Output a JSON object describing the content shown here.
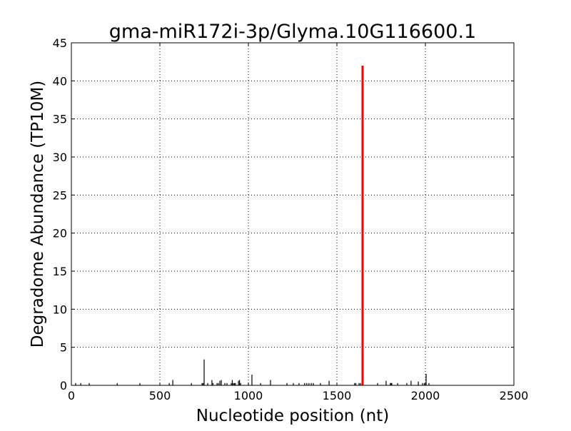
{
  "chart_data": {
    "type": "bar",
    "title": "gma-miR172i-3p/Glyma.10G116600.1",
    "xlabel": "Nucleotide position (nt)",
    "ylabel": "Degradome Abundance (TP10M)",
    "xlim": [
      0,
      2500
    ],
    "ylim": [
      0,
      45
    ],
    "xticks": [
      0,
      500,
      1000,
      1500,
      2000,
      2500
    ],
    "yticks": [
      0,
      5,
      10,
      15,
      20,
      25,
      30,
      35,
      40,
      45
    ],
    "grid": true,
    "colors": {
      "default": "#000000",
      "highlight": "#ff0000"
    },
    "highlight": {
      "x": 1645,
      "y": 42
    },
    "bars": [
      {
        "x": 24,
        "y": 0.3
      },
      {
        "x": 53,
        "y": 0.3
      },
      {
        "x": 101,
        "y": 0.3
      },
      {
        "x": 259,
        "y": 0.3
      },
      {
        "x": 387,
        "y": 0.3
      },
      {
        "x": 553,
        "y": 0.3
      },
      {
        "x": 573,
        "y": 0.7
      },
      {
        "x": 678,
        "y": 0.3
      },
      {
        "x": 738,
        "y": 0.3
      },
      {
        "x": 744,
        "y": 0.3
      },
      {
        "x": 750,
        "y": 3.4
      },
      {
        "x": 770,
        "y": 0.3
      },
      {
        "x": 794,
        "y": 0.7
      },
      {
        "x": 800,
        "y": 0.3
      },
      {
        "x": 823,
        "y": 0.3
      },
      {
        "x": 831,
        "y": 0.3
      },
      {
        "x": 839,
        "y": 0.6
      },
      {
        "x": 847,
        "y": 0.7
      },
      {
        "x": 867,
        "y": 0.3
      },
      {
        "x": 879,
        "y": 0.3
      },
      {
        "x": 903,
        "y": 0.3
      },
      {
        "x": 909,
        "y": 0.7
      },
      {
        "x": 915,
        "y": 0.3
      },
      {
        "x": 921,
        "y": 0.3
      },
      {
        "x": 927,
        "y": 0.3
      },
      {
        "x": 944,
        "y": 0.6
      },
      {
        "x": 950,
        "y": 0.7
      },
      {
        "x": 956,
        "y": 0.3
      },
      {
        "x": 1000,
        "y": 0.3
      },
      {
        "x": 1020,
        "y": 1.4
      },
      {
        "x": 1069,
        "y": 0.3
      },
      {
        "x": 1125,
        "y": 0.7
      },
      {
        "x": 1218,
        "y": 0.3
      },
      {
        "x": 1254,
        "y": 0.3
      },
      {
        "x": 1286,
        "y": 0.3
      },
      {
        "x": 1318,
        "y": 0.3
      },
      {
        "x": 1330,
        "y": 0.3
      },
      {
        "x": 1342,
        "y": 0.3
      },
      {
        "x": 1355,
        "y": 0.3
      },
      {
        "x": 1367,
        "y": 0.3
      },
      {
        "x": 1407,
        "y": 0.3
      },
      {
        "x": 1456,
        "y": 0.6
      },
      {
        "x": 1600,
        "y": 0.3
      },
      {
        "x": 1607,
        "y": 0.3
      },
      {
        "x": 1625,
        "y": 0.3
      },
      {
        "x": 1633,
        "y": 0.3
      },
      {
        "x": 1645,
        "y": 42
      },
      {
        "x": 1730,
        "y": 0.3
      },
      {
        "x": 1778,
        "y": 0.6
      },
      {
        "x": 1802,
        "y": 0.3
      },
      {
        "x": 1806,
        "y": 0.3
      },
      {
        "x": 1810,
        "y": 0.3
      },
      {
        "x": 1843,
        "y": 0.3
      },
      {
        "x": 1895,
        "y": 0.3
      },
      {
        "x": 1919,
        "y": 0.6
      },
      {
        "x": 1960,
        "y": 0.5
      },
      {
        "x": 1984,
        "y": 0.3
      },
      {
        "x": 1994,
        "y": 0.3
      },
      {
        "x": 2004,
        "y": 1.5
      },
      {
        "x": 2020,
        "y": 0.3
      }
    ]
  }
}
